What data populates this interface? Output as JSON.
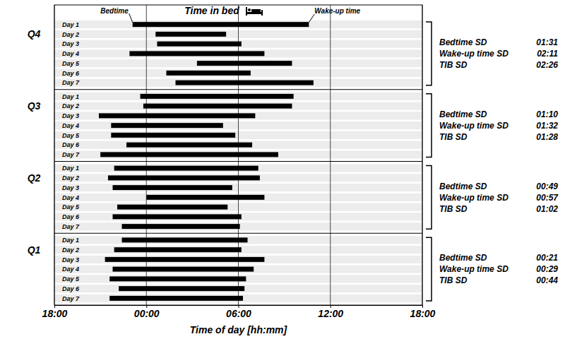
{
  "chart_data": {
    "type": "gantt",
    "xlabel": "Time of day [hh:mm]",
    "xlim": [
      18,
      42
    ],
    "xticks": [
      {
        "value": 18,
        "label": "18:00"
      },
      {
        "value": 24,
        "label": "00:00"
      },
      {
        "value": 30,
        "label": "06:00"
      },
      {
        "value": 36,
        "label": "12:00"
      },
      {
        "value": 42,
        "label": "18:00"
      }
    ],
    "grid": true,
    "color": "#000000",
    "annotations": [
      "Bedtime",
      "Time in bed",
      "Wake-up time"
    ],
    "categories": [
      "Day 1",
      "Day 2",
      "Day 3",
      "Day 4",
      "Day 5",
      "Day 6",
      "Day 7"
    ],
    "series": [
      {
        "name": "Q4",
        "bedtime": [
          23.1,
          24.6,
          24.7,
          22.9,
          27.3,
          25.3,
          25.9
        ],
        "wake_up": [
          34.6,
          29.2,
          30.2,
          31.7,
          33.5,
          30.8,
          34.9
        ],
        "stats": [
          {
            "label": "Bedtime SD",
            "value": "01:31"
          },
          {
            "label": "Wake-up time SD",
            "value": "02:11"
          },
          {
            "label": "TIB SD",
            "value": "02:26"
          }
        ]
      },
      {
        "name": "Q3",
        "bedtime": [
          23.6,
          23.8,
          20.9,
          21.7,
          21.7,
          22.7,
          21.0
        ],
        "wake_up": [
          33.6,
          33.5,
          31.1,
          29.0,
          29.8,
          30.9,
          32.6
        ],
        "stats": [
          {
            "label": "Bedtime SD",
            "value": "01:10"
          },
          {
            "label": "Wake-up time SD",
            "value": "01:32"
          },
          {
            "label": "TIB SD",
            "value": "01:28"
          }
        ]
      },
      {
        "name": "Q2",
        "bedtime": [
          21.9,
          21.5,
          21.8,
          24.0,
          22.1,
          21.8,
          22.4
        ],
        "wake_up": [
          31.3,
          31.4,
          29.6,
          31.7,
          29.3,
          30.2,
          30.1
        ],
        "stats": [
          {
            "label": "Bedtime SD",
            "value": "00:49"
          },
          {
            "label": "Wake-up time SD",
            "value": "00:57"
          },
          {
            "label": "TIB SD",
            "value": "01:02"
          }
        ]
      },
      {
        "name": "Q1",
        "bedtime": [
          22.4,
          21.9,
          21.3,
          21.8,
          21.6,
          22.2,
          21.6
        ],
        "wake_up": [
          30.6,
          30.2,
          31.7,
          31.0,
          30.5,
          30.4,
          30.3
        ],
        "stats": [
          {
            "label": "Bedtime SD",
            "value": "00:21"
          },
          {
            "label": "Wake-up time SD",
            "value": "00:29"
          },
          {
            "label": "TIB SD",
            "value": "00:44"
          }
        ]
      }
    ]
  }
}
